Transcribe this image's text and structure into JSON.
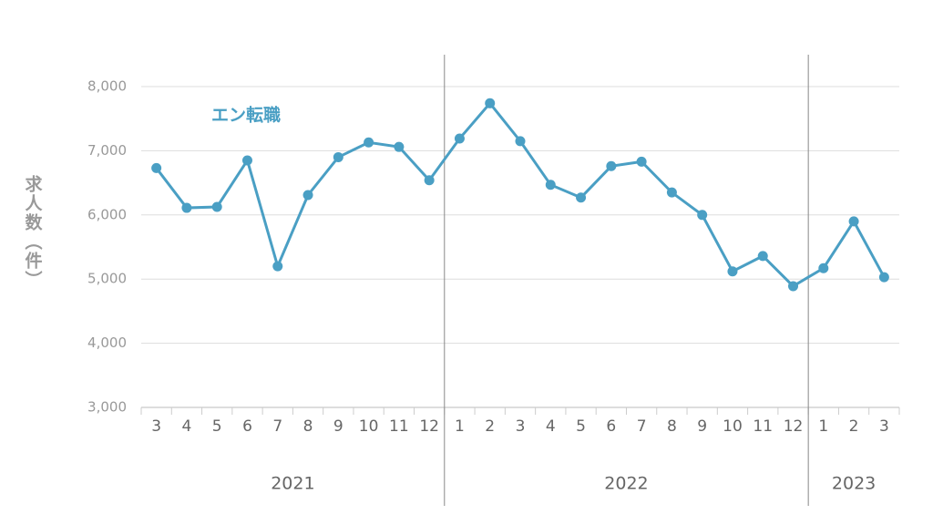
{
  "chart_data": {
    "type": "line",
    "y_label": "求人数（件）",
    "categories": [
      "3",
      "4",
      "5",
      "6",
      "7",
      "8",
      "9",
      "10",
      "11",
      "12",
      "1",
      "2",
      "3",
      "4",
      "5",
      "6",
      "7",
      "8",
      "9",
      "10",
      "11",
      "12",
      "1",
      "2",
      "3"
    ],
    "years": [
      "2021",
      "2022",
      "2023"
    ],
    "series": [
      {
        "name": "エン転職",
        "color": "#4a9fc4",
        "values": [
          6730,
          6110,
          6125,
          6850,
          5200,
          6310,
          6900,
          7130,
          7060,
          6540,
          7190,
          7740,
          7150,
          6470,
          6270,
          6760,
          6830,
          6350,
          6000,
          5120,
          5360,
          4890,
          5170,
          5900,
          5030
        ]
      }
    ],
    "ylim": [
      3000,
      8000
    ],
    "yticks": [
      {
        "value": 3000,
        "label": "3,000"
      },
      {
        "value": 4000,
        "label": "4,000"
      },
      {
        "value": 5000,
        "label": "5,000"
      },
      {
        "value": 6000,
        "label": "6,000"
      },
      {
        "value": 7000,
        "label": "7,000"
      },
      {
        "value": 8000,
        "label": "8,000"
      }
    ],
    "grid": true
  }
}
